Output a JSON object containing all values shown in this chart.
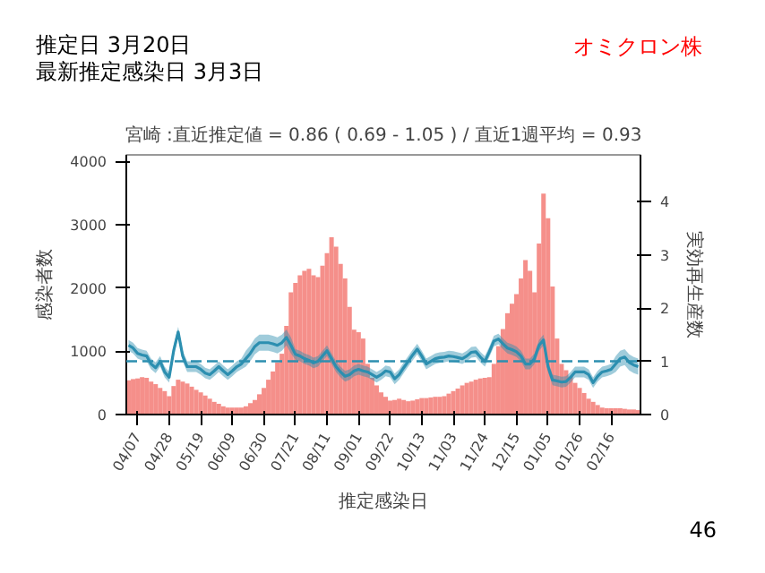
{
  "chart_data": {
    "type": "bar",
    "title": "宮崎 :直近推定値 = 0.86 ( 0.69 - 1.05 ) / 直近1週平均 = 0.93",
    "xlabel": "推定感染日",
    "ylabel": "感染者数",
    "y2label": "実効再生産数",
    "annotations": [
      "推定日  3月20日",
      "最新推定感染日  3月3日",
      "オミクロン株",
      "46"
    ],
    "categories": [
      null,
      null,
      "04/07",
      null,
      null,
      null,
      null,
      null,
      null,
      "04/28",
      null,
      null,
      null,
      null,
      null,
      null,
      "05/19",
      null,
      null,
      null,
      null,
      null,
      null,
      "06/09",
      null,
      null,
      null,
      null,
      null,
      null,
      "06/30",
      null,
      null,
      null,
      null,
      null,
      null,
      "07/21",
      null,
      null,
      null,
      null,
      null,
      null,
      "08/11",
      null,
      null,
      null,
      null,
      null,
      null,
      "09/01",
      null,
      null,
      null,
      null,
      null,
      null,
      "09/22",
      null,
      null,
      null,
      null,
      null,
      null,
      "10/13",
      null,
      null,
      null,
      null,
      null,
      null,
      "11/03",
      null,
      null,
      null,
      null,
      null,
      null,
      "11/24",
      null,
      null,
      null,
      null,
      null,
      null,
      "12/15",
      null,
      null,
      null,
      null,
      null,
      null,
      "01/05",
      null,
      null,
      null,
      null,
      null,
      null,
      "01/26",
      null,
      null,
      null,
      null,
      null,
      null,
      "02/16",
      null,
      null,
      null,
      null,
      null,
      null
    ],
    "ylim": [
      0,
      4100
    ],
    "yticks": [
      0,
      1000,
      2000,
      3000,
      4000
    ],
    "y2lim": [
      0,
      4.88
    ],
    "y2ticks": [
      0,
      1,
      2,
      3,
      4
    ],
    "ref_lines": [
      {
        "axis": "y2",
        "value": 1,
        "color": "#2c8fb0",
        "line_style": "dashed"
      }
    ],
    "series": [
      {
        "color": "#f4837d",
        "values": [
          540,
          560,
          570,
          590,
          580,
          520,
          480,
          420,
          370,
          290,
          450,
          550,
          520,
          490,
          440,
          390,
          350,
          300,
          250,
          200,
          170,
          130,
          110,
          110,
          110,
          110,
          130,
          180,
          230,
          320,
          420,
          550,
          680,
          820,
          960,
          1400,
          1930,
          2080,
          2200,
          2270,
          2300,
          2200,
          2170,
          2350,
          2550,
          2800,
          2650,
          2380,
          2150,
          1700,
          1340,
          1300,
          1200,
          800,
          580,
          460,
          350,
          280,
          220,
          230,
          250,
          230,
          210,
          220,
          240,
          260,
          260,
          270,
          280,
          280,
          290,
          330,
          370,
          410,
          460,
          500,
          520,
          550,
          570,
          580,
          590,
          800,
          1080,
          1350,
          1600,
          1750,
          1900,
          2150,
          2440,
          2270,
          1930,
          2700,
          3490,
          3100,
          2020,
          1200,
          800,
          700,
          600,
          500,
          420,
          340,
          250,
          200,
          150,
          110,
          100,
          100,
          100,
          100,
          90,
          80,
          80,
          70
        ]
      },
      {
        "type": "line",
        "axis": "y2",
        "color": "#2c8fb0",
        "values": [
          1.3,
          1.25,
          1.15,
          1.12,
          1.1,
          0.95,
          0.88,
          1.0,
          0.8,
          0.7,
          1.2,
          1.55,
          1.1,
          0.9,
          0.9,
          0.9,
          0.85,
          0.78,
          0.75,
          0.82,
          0.9,
          0.82,
          0.75,
          0.82,
          0.9,
          0.95,
          1.05,
          1.15,
          1.28,
          1.35,
          1.35,
          1.35,
          1.33,
          1.3,
          1.35,
          1.45,
          1.3,
          1.13,
          1.1,
          1.05,
          1.02,
          0.97,
          1.0,
          1.1,
          1.2,
          1.05,
          0.9,
          0.8,
          0.72,
          0.75,
          0.82,
          0.85,
          0.82,
          0.8,
          0.75,
          0.7,
          0.75,
          0.82,
          0.8,
          0.67,
          0.75,
          0.88,
          1.0,
          1.12,
          1.23,
          1.1,
          0.95,
          1.0,
          1.05,
          1.07,
          1.08,
          1.1,
          1.09,
          1.07,
          1.05,
          1.1,
          1.17,
          1.18,
          1.08,
          1.0,
          1.18,
          1.38,
          1.42,
          1.33,
          1.25,
          1.22,
          1.18,
          1.1,
          0.95,
          0.95,
          1.05,
          1.3,
          1.4,
          0.9,
          0.65,
          0.63,
          0.61,
          0.62,
          0.7,
          0.8,
          0.8,
          0.8,
          0.75,
          0.6,
          0.72,
          0.8,
          0.82,
          0.85,
          0.95,
          1.05,
          1.08,
          0.98,
          0.93,
          0.9
        ],
        "lower": [
          1.2,
          1.15,
          1.05,
          1.02,
          1.0,
          0.85,
          0.78,
          0.9,
          0.7,
          0.6,
          1.1,
          1.45,
          1.0,
          0.8,
          0.8,
          0.8,
          0.75,
          0.68,
          0.65,
          0.72,
          0.8,
          0.72,
          0.65,
          0.72,
          0.8,
          0.85,
          0.9,
          1.0,
          1.13,
          1.2,
          1.2,
          1.2,
          1.18,
          1.15,
          1.2,
          1.3,
          1.15,
          1.03,
          1.0,
          0.95,
          0.92,
          0.87,
          0.9,
          1.0,
          1.1,
          0.95,
          0.8,
          0.7,
          0.62,
          0.65,
          0.72,
          0.75,
          0.72,
          0.7,
          0.65,
          0.6,
          0.65,
          0.72,
          0.7,
          0.57,
          0.65,
          0.78,
          0.9,
          1.02,
          1.13,
          1.0,
          0.85,
          0.9,
          0.95,
          0.97,
          0.98,
          1.0,
          0.99,
          0.97,
          0.95,
          1.0,
          1.07,
          1.08,
          0.98,
          0.9,
          1.08,
          1.28,
          1.32,
          1.23,
          1.15,
          1.12,
          1.08,
          1.0,
          0.85,
          0.85,
          0.95,
          1.2,
          1.3,
          0.8,
          0.55,
          0.53,
          0.51,
          0.52,
          0.6,
          0.7,
          0.7,
          0.7,
          0.65,
          0.5,
          0.62,
          0.7,
          0.72,
          0.75,
          0.8,
          0.9,
          0.93,
          0.83,
          0.78,
          0.75
        ],
        "upper": [
          1.4,
          1.35,
          1.25,
          1.22,
          1.2,
          1.05,
          0.98,
          1.1,
          0.9,
          0.8,
          1.3,
          1.65,
          1.2,
          1.0,
          1.0,
          1.0,
          0.95,
          0.88,
          0.85,
          0.92,
          1.0,
          0.92,
          0.85,
          0.92,
          1.0,
          1.05,
          1.2,
          1.3,
          1.43,
          1.5,
          1.5,
          1.5,
          1.48,
          1.45,
          1.5,
          1.6,
          1.45,
          1.23,
          1.2,
          1.15,
          1.12,
          1.07,
          1.1,
          1.2,
          1.3,
          1.15,
          1.0,
          0.9,
          0.82,
          0.85,
          0.92,
          0.95,
          0.92,
          0.9,
          0.85,
          0.8,
          0.85,
          0.92,
          0.9,
          0.77,
          0.85,
          0.98,
          1.1,
          1.22,
          1.33,
          1.2,
          1.05,
          1.1,
          1.15,
          1.17,
          1.18,
          1.2,
          1.19,
          1.17,
          1.15,
          1.2,
          1.27,
          1.28,
          1.18,
          1.1,
          1.28,
          1.48,
          1.52,
          1.43,
          1.35,
          1.32,
          1.28,
          1.2,
          1.05,
          1.05,
          1.15,
          1.4,
          1.5,
          1.0,
          0.75,
          0.73,
          0.71,
          0.72,
          0.8,
          0.9,
          0.9,
          0.9,
          0.85,
          0.7,
          0.82,
          0.9,
          0.92,
          0.95,
          1.1,
          1.2,
          1.23,
          1.13,
          1.08,
          1.05
        ]
      }
    ],
    "grid": false
  }
}
